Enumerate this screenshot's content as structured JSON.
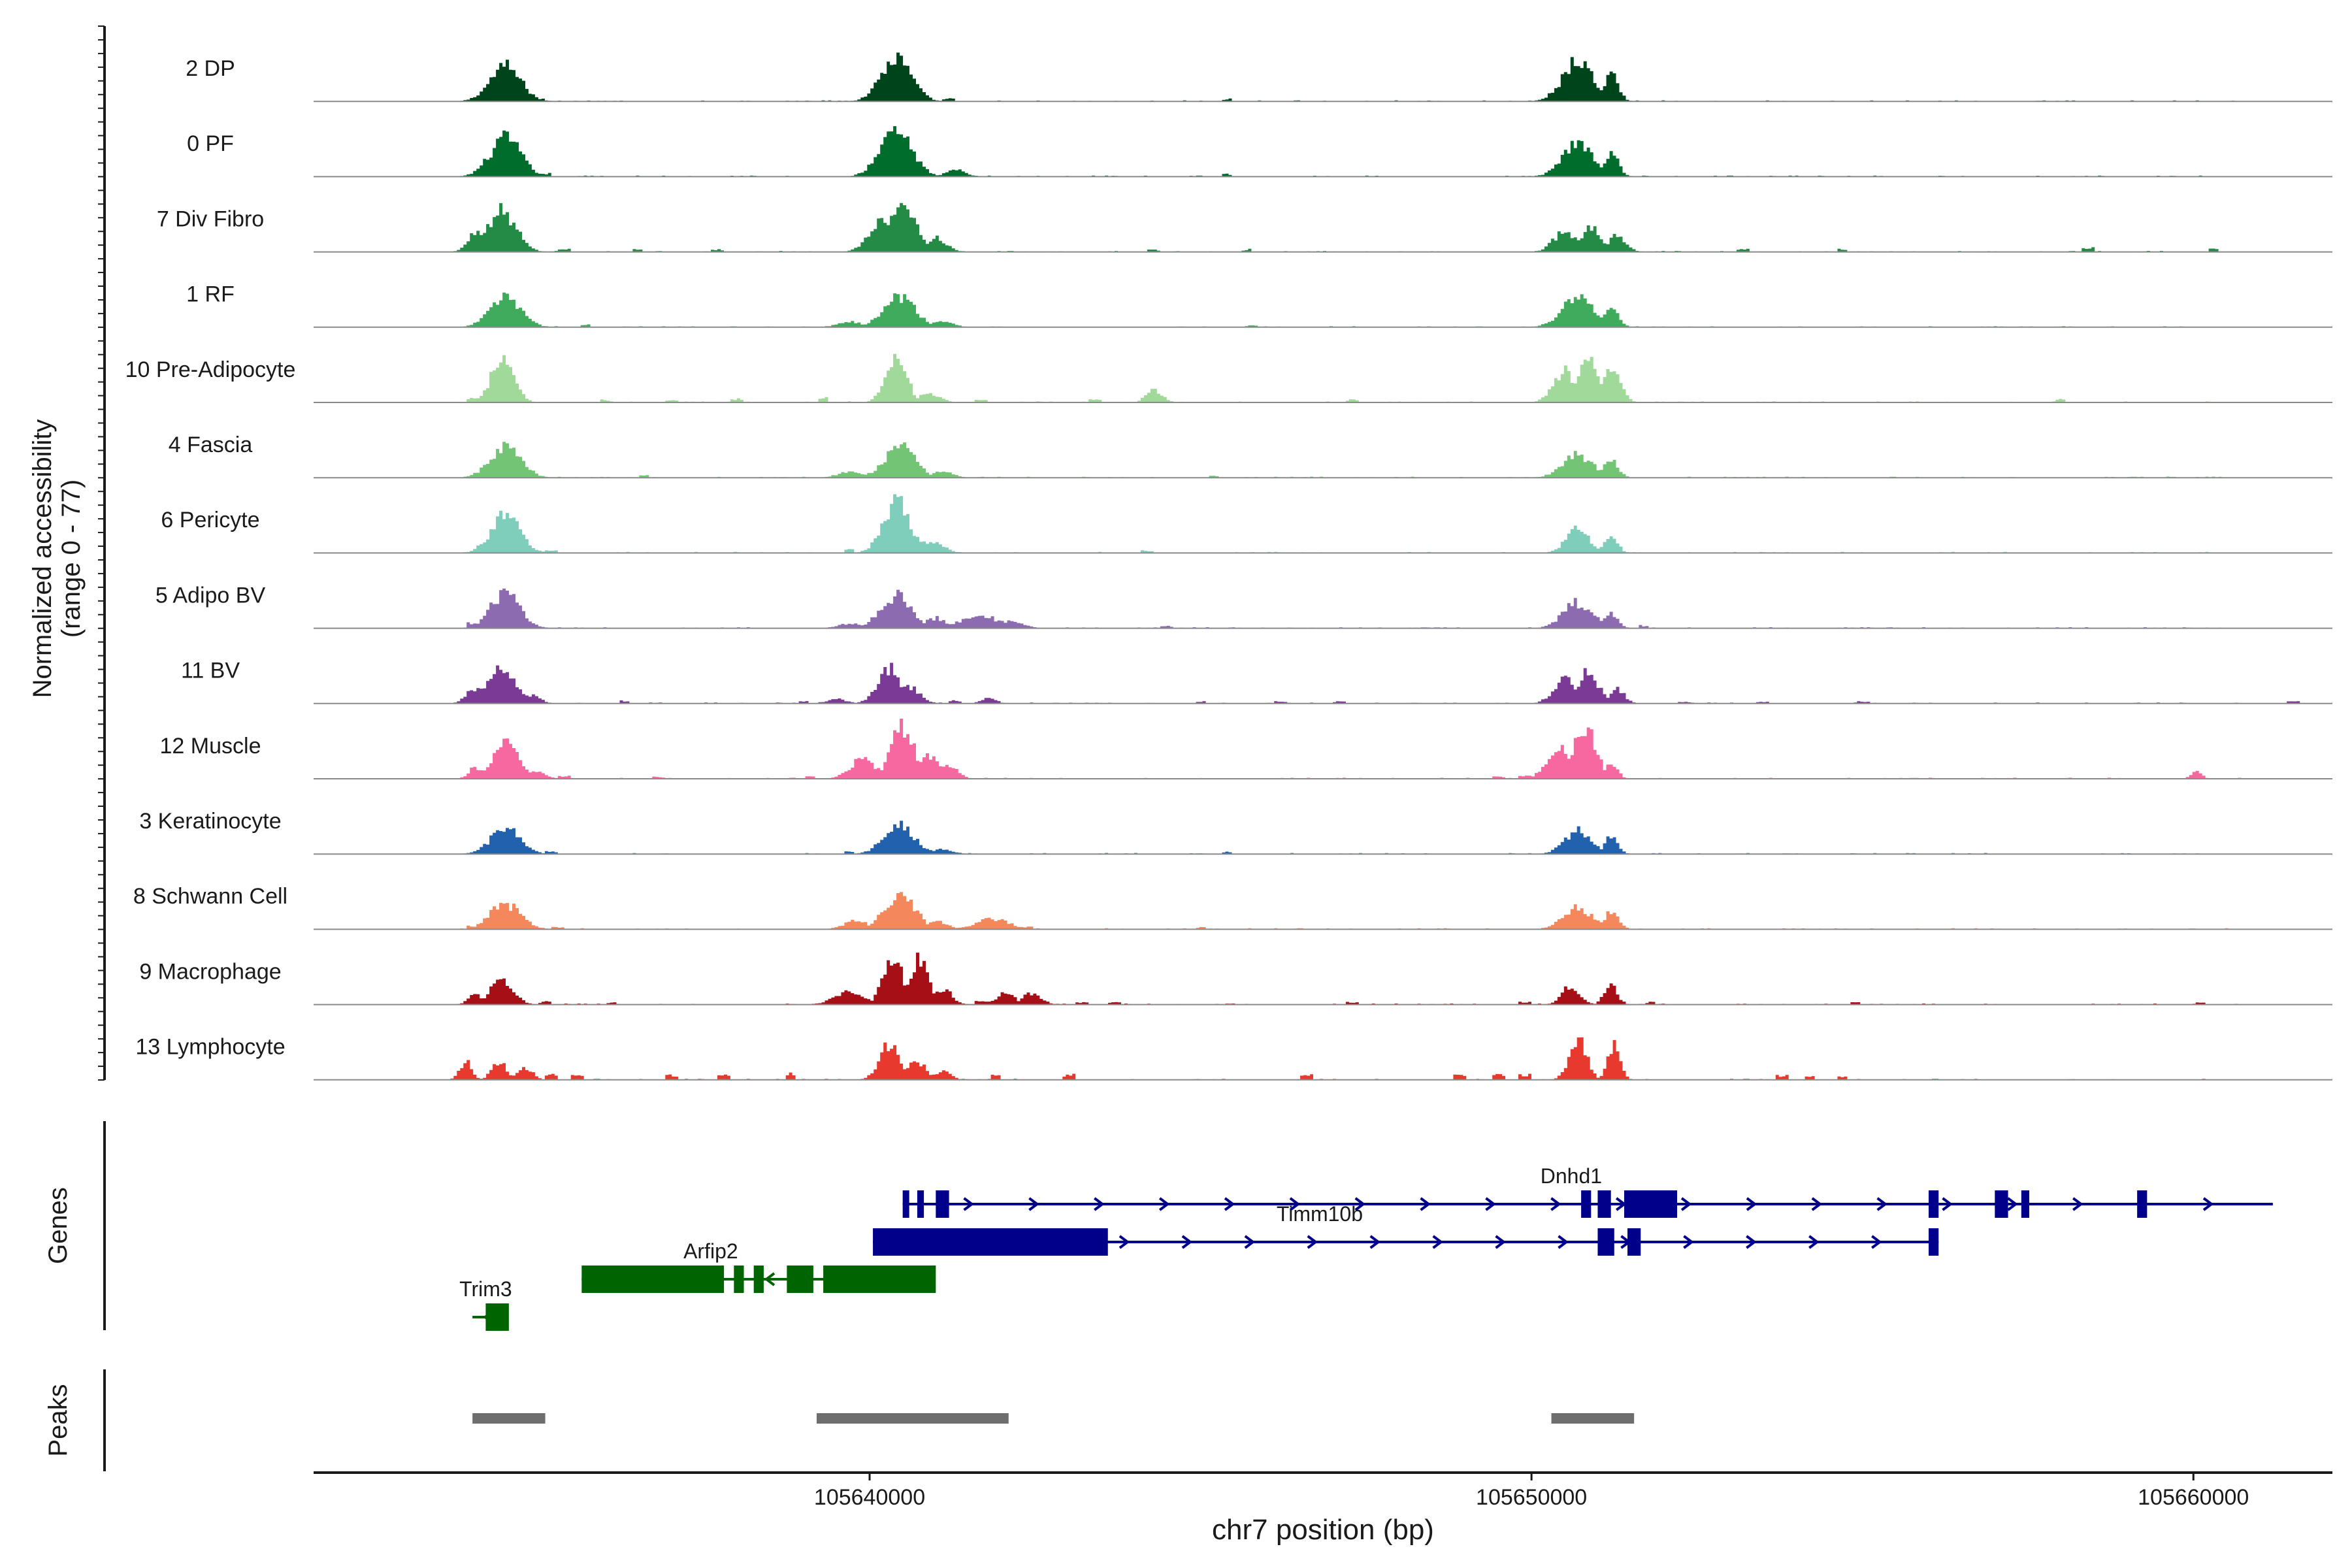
{
  "chart_data": {
    "type": "area",
    "title": "",
    "ylabel": "Normalized accessibility",
    "ylabel_range": "(range 0 - 77)",
    "xlabel": "chr7 position (bp)",
    "chromosome": "chr7",
    "xlim": [
      105631600,
      105662100
    ],
    "ylim": [
      0,
      77
    ],
    "x_ticks": [
      105640000,
      105650000,
      105660000
    ],
    "x_tick_labels": [
      "105640000",
      "105650000",
      "105660000"
    ],
    "peak_centers": [
      105634500,
      105640400,
      105650700,
      105651200
    ],
    "tracks": [
      {
        "name": "2 DP",
        "color": "#00441b",
        "peaks": [
          [
            105634500,
            0.62,
            230
          ],
          [
            105640400,
            0.75,
            230
          ],
          [
            105650700,
            0.7,
            230
          ],
          [
            105651200,
            0.47,
            110
          ]
        ],
        "noise": [
          [
            105634050,
            0.06
          ],
          [
            105635000,
            0.05
          ],
          [
            105640000,
            0.06
          ],
          [
            105641200,
            0.05
          ],
          [
            105645400,
            0.05
          ]
        ]
      },
      {
        "name": "0 PF",
        "color": "#006d2c",
        "peaks": [
          [
            105634500,
            0.68,
            230
          ],
          [
            105640400,
            0.78,
            240
          ],
          [
            105641300,
            0.12,
            150
          ],
          [
            105650700,
            0.6,
            230
          ],
          [
            105651200,
            0.43,
            110
          ]
        ],
        "noise": [
          [
            105634100,
            0.07
          ],
          [
            105635100,
            0.06
          ],
          [
            105639900,
            0.08
          ],
          [
            105645400,
            0.05
          ]
        ]
      },
      {
        "name": "7 Div Fibro",
        "color": "#238b45",
        "peaks": [
          [
            105634100,
            0.4,
            140
          ],
          [
            105634450,
            0.72,
            210
          ],
          [
            105640200,
            0.52,
            200
          ],
          [
            105640500,
            0.74,
            210
          ],
          [
            105641000,
            0.25,
            160
          ],
          [
            105650500,
            0.35,
            170
          ],
          [
            105650900,
            0.4,
            170
          ],
          [
            105651300,
            0.3,
            130
          ]
        ],
        "noise": [
          [
            105635400,
            0.06
          ],
          [
            105636500,
            0.05
          ],
          [
            105637700,
            0.05
          ],
          [
            105640700,
            0.18
          ],
          [
            105644300,
            0.05
          ],
          [
            105645700,
            0.05
          ],
          [
            105653200,
            0.06
          ],
          [
            105654700,
            0.05
          ],
          [
            105658400,
            0.1
          ],
          [
            105660300,
            0.08
          ]
        ]
      },
      {
        "name": "1 RF",
        "color": "#41ab5d",
        "peaks": [
          [
            105634500,
            0.52,
            230
          ],
          [
            105639700,
            0.1,
            180
          ],
          [
            105640450,
            0.55,
            230
          ],
          [
            105641100,
            0.12,
            150
          ],
          [
            105650700,
            0.52,
            240
          ],
          [
            105651200,
            0.36,
            110
          ]
        ],
        "noise": [
          [
            105634100,
            0.06
          ],
          [
            105635700,
            0.05
          ],
          [
            105645800,
            0.04
          ]
        ]
      },
      {
        "name": "10 Pre-Adipocyte",
        "color": "#a1d99b",
        "peaks": [
          [
            105634450,
            0.75,
            170
          ],
          [
            105640400,
            0.9,
            150
          ],
          [
            105640900,
            0.15,
            160
          ],
          [
            105644300,
            0.22,
            120
          ],
          [
            105650500,
            0.55,
            170
          ],
          [
            105650850,
            0.75,
            170
          ],
          [
            105651200,
            0.55,
            140
          ]
        ],
        "noise": [
          [
            105634000,
            0.1
          ],
          [
            105636000,
            0.06
          ],
          [
            105637000,
            0.06
          ],
          [
            105638000,
            0.07
          ],
          [
            105639300,
            0.09
          ],
          [
            105641700,
            0.06
          ],
          [
            105643400,
            0.06
          ],
          [
            105647300,
            0.06
          ],
          [
            105658000,
            0.06
          ]
        ]
      },
      {
        "name": "4 Fascia",
        "color": "#74c476",
        "peaks": [
          [
            105634500,
            0.55,
            230
          ],
          [
            105639700,
            0.1,
            180
          ],
          [
            105640450,
            0.55,
            230
          ],
          [
            105641100,
            0.12,
            150
          ],
          [
            105650700,
            0.4,
            230
          ],
          [
            105651200,
            0.3,
            110
          ]
        ],
        "noise": [
          [
            105634100,
            0.06
          ],
          [
            105636600,
            0.05
          ],
          [
            105645200,
            0.04
          ]
        ]
      },
      {
        "name": "6 Pericyte",
        "color": "#7fcdbb",
        "peaks": [
          [
            105634500,
            0.65,
            220
          ],
          [
            105640400,
            0.9,
            200
          ],
          [
            105640900,
            0.2,
            200
          ],
          [
            105650700,
            0.45,
            170
          ],
          [
            105651200,
            0.3,
            100
          ]
        ],
        "noise": [
          [
            105634100,
            0.08
          ],
          [
            105635200,
            0.05
          ],
          [
            105639700,
            0.08
          ],
          [
            105644200,
            0.05
          ]
        ]
      },
      {
        "name": "5 Adipo BV",
        "color": "#8c6bb1",
        "peaks": [
          [
            105634500,
            0.62,
            220
          ],
          [
            105639700,
            0.08,
            180
          ],
          [
            105640400,
            0.58,
            230
          ],
          [
            105641000,
            0.18,
            150
          ],
          [
            105641650,
            0.25,
            250
          ],
          [
            105642100,
            0.12,
            200
          ],
          [
            105650700,
            0.45,
            220
          ],
          [
            105651200,
            0.25,
            110
          ]
        ],
        "noise": [
          [
            105634000,
            0.12
          ],
          [
            105644500,
            0.05
          ],
          [
            105651700,
            0.06
          ]
        ]
      },
      {
        "name": "11 BV",
        "color": "#7a3a96",
        "peaks": [
          [
            105634050,
            0.28,
            130
          ],
          [
            105634450,
            0.6,
            200
          ],
          [
            105634900,
            0.15,
            120
          ],
          [
            105639500,
            0.08,
            150
          ],
          [
            105640300,
            0.62,
            180
          ],
          [
            105640600,
            0.3,
            160
          ],
          [
            105641800,
            0.12,
            100
          ],
          [
            105650500,
            0.42,
            170
          ],
          [
            105650850,
            0.55,
            160
          ],
          [
            105651300,
            0.25,
            110
          ]
        ],
        "noise": [
          [
            105636300,
            0.05
          ],
          [
            105639000,
            0.05
          ],
          [
            105641300,
            0.06
          ],
          [
            105645000,
            0.04
          ],
          [
            105646200,
            0.04
          ],
          [
            105647100,
            0.04
          ],
          [
            105652300,
            0.04
          ],
          [
            105653500,
            0.04
          ],
          [
            105655000,
            0.04
          ],
          [
            105661500,
            0.04
          ]
        ]
      },
      {
        "name": "12 Muscle",
        "color": "#f768a1",
        "peaks": [
          [
            105634050,
            0.2,
            100
          ],
          [
            105634500,
            0.68,
            180
          ],
          [
            105634950,
            0.12,
            150
          ],
          [
            105639900,
            0.35,
            190
          ],
          [
            105640500,
            0.95,
            170
          ],
          [
            105640900,
            0.42,
            170
          ],
          [
            105641200,
            0.22,
            130
          ],
          [
            105650400,
            0.55,
            170
          ],
          [
            105650800,
            0.9,
            170
          ],
          [
            105651200,
            0.25,
            100
          ],
          [
            105660050,
            0.12,
            80
          ]
        ],
        "noise": [
          [
            105635400,
            0.05
          ],
          [
            105636800,
            0.04
          ],
          [
            105639100,
            0.06
          ],
          [
            105649500,
            0.05
          ],
          [
            105649900,
            0.06
          ]
        ]
      },
      {
        "name": "3 Keratinocyte",
        "color": "#2161ae",
        "peaks": [
          [
            105634500,
            0.45,
            220
          ],
          [
            105640450,
            0.5,
            230
          ],
          [
            105641100,
            0.08,
            160
          ],
          [
            105650700,
            0.42,
            200
          ],
          [
            105651200,
            0.3,
            100
          ]
        ],
        "noise": [
          [
            105634100,
            0.06
          ],
          [
            105635200,
            0.05
          ],
          [
            105639700,
            0.05
          ],
          [
            105645400,
            0.04
          ]
        ]
      },
      {
        "name": "8 Schwann Cell",
        "color": "#f4875c",
        "peaks": [
          [
            105634500,
            0.45,
            230
          ],
          [
            105639800,
            0.15,
            180
          ],
          [
            105640450,
            0.62,
            230
          ],
          [
            105641000,
            0.15,
            160
          ],
          [
            105641850,
            0.18,
            250
          ],
          [
            105650700,
            0.38,
            220
          ],
          [
            105651200,
            0.3,
            110
          ]
        ],
        "noise": [
          [
            105634000,
            0.08
          ],
          [
            105635300,
            0.05
          ],
          [
            105642400,
            0.06
          ],
          [
            105645000,
            0.04
          ]
        ]
      },
      {
        "name": "9 Macrophage",
        "color": "#a50f15",
        "peaks": [
          [
            105634050,
            0.18,
            110
          ],
          [
            105634450,
            0.45,
            170
          ],
          [
            105639700,
            0.25,
            220
          ],
          [
            105640350,
            0.9,
            140
          ],
          [
            105640750,
            0.78,
            140
          ],
          [
            105641100,
            0.28,
            140
          ],
          [
            105642050,
            0.2,
            140
          ],
          [
            105642450,
            0.2,
            140
          ],
          [
            105650600,
            0.32,
            140
          ],
          [
            105651200,
            0.32,
            100
          ]
        ],
        "noise": [
          [
            105635100,
            0.05
          ],
          [
            105636100,
            0.05
          ],
          [
            105641700,
            0.08
          ],
          [
            105643200,
            0.05
          ],
          [
            105643700,
            0.05
          ],
          [
            105647300,
            0.05
          ],
          [
            105649900,
            0.05
          ],
          [
            105651800,
            0.05
          ],
          [
            105654900,
            0.05
          ],
          [
            105660100,
            0.05
          ]
        ]
      },
      {
        "name": "13 Lymphocyte",
        "color": "#e8392f",
        "peaks": [
          [
            105633900,
            0.32,
            90
          ],
          [
            105634400,
            0.32,
            110
          ],
          [
            105634800,
            0.22,
            110
          ],
          [
            105640300,
            0.62,
            150
          ],
          [
            105640700,
            0.35,
            140
          ],
          [
            105641100,
            0.15,
            120
          ],
          [
            105650700,
            0.75,
            130
          ],
          [
            105651250,
            0.62,
            90
          ]
        ],
        "noise": [
          [
            105635200,
            0.1
          ],
          [
            105635600,
            0.1
          ],
          [
            105637000,
            0.08
          ],
          [
            105637800,
            0.12
          ],
          [
            105638800,
            0.12
          ],
          [
            105641900,
            0.1
          ],
          [
            105643000,
            0.1
          ],
          [
            105646600,
            0.1
          ],
          [
            105648900,
            0.1
          ],
          [
            105649500,
            0.1
          ],
          [
            105649900,
            0.1
          ],
          [
            105653800,
            0.08
          ],
          [
            105654700,
            0.08
          ],
          [
            105654200,
            0.1
          ]
        ]
      }
    ],
    "genes_label": "Genes",
    "genes": [
      {
        "name": "Dnhd1",
        "strand": "+",
        "color": "#00008b",
        "row": 0,
        "label_at": 105650600,
        "start": 105640500,
        "end": 105661200,
        "exons": [
          [
            105640500,
            105640580
          ],
          [
            105640720,
            105640820
          ],
          [
            105641000,
            105641200
          ],
          [
            105650750,
            105650900
          ],
          [
            105651000,
            105651200
          ],
          [
            105651400,
            105652200
          ],
          [
            105656000,
            105656150
          ],
          [
            105657000,
            105657200
          ],
          [
            105657400,
            105657520
          ],
          [
            105659150,
            105659300
          ]
        ]
      },
      {
        "name": "Timm10b",
        "strand": "+",
        "color": "#00008b",
        "row": 1,
        "label_at": 105646800,
        "start": 105640050,
        "end": 105656150,
        "exons": [
          [
            105640050,
            105643600
          ],
          [
            105651000,
            105651250
          ],
          [
            105651450,
            105651650
          ],
          [
            105656000,
            105656150
          ]
        ]
      },
      {
        "name": "Arfip2",
        "strand": "-",
        "color": "#006400",
        "row": 2,
        "label_at": 105637600,
        "start": 105635650,
        "end": 105640400,
        "exons": [
          [
            105635650,
            105637800
          ],
          [
            105637950,
            105638100
          ],
          [
            105638250,
            105638400
          ],
          [
            105638750,
            105639150
          ],
          [
            105639300,
            105641000
          ],
          [
            105640150,
            105640400
          ]
        ]
      },
      {
        "name": "Trim3",
        "strand": "-",
        "color": "#006400",
        "row": 3,
        "label_at": 105634200,
        "start": 105634000,
        "end": 105634500,
        "exons": [
          [
            105634200,
            105634550
          ]
        ]
      }
    ],
    "peaks_label": "Peaks",
    "peak_regions": [
      [
        105634000,
        105635100
      ],
      [
        105639200,
        105642100
      ],
      [
        105650300,
        105651550
      ]
    ],
    "peaks_color": "#6e6e6e"
  }
}
